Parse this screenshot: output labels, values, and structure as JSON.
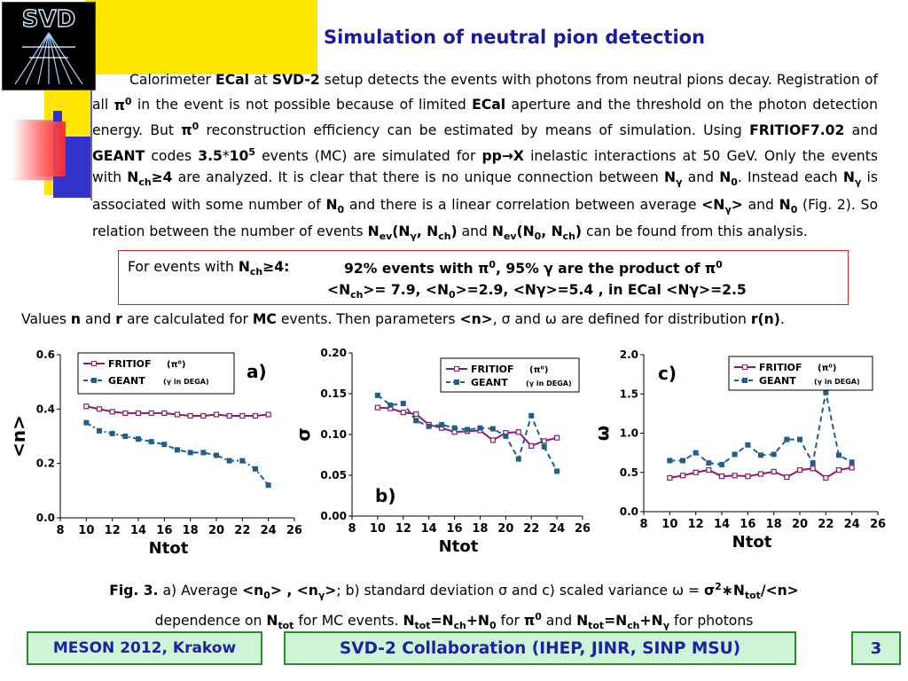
{
  "header": {
    "logo_text": "SVD",
    "title": "Simulation of neutral pion detection"
  },
  "paragraph_html": "Calorimeter <b>ECal</b> at <b>SVD-2</b> setup detects the events with photons from neutral pions decay. Registration of all <b>π<sup>0</sup></b> in the event is not possible because of limited <b>ECal</b> aperture and the threshold on the photon detection energy. But <b>π<sup>0</sup></b> reconstruction efficiency can be estimated by means of simulation. Using <b>FRITIOF7.02</b> and <b>GEANT</b> codes <b>3.5</b>*<b>10<sup>5</sup></b> events (MC) are simulated for <b>pp→X</b> inelastic interactions at 50 GeV. Only the events with <b>N<sub>ch</sub>≥4</b> are analyzed. It is clear that there is no unique connection between <b>N<sub>γ</sub></b> and <b>N<sub>0</sub></b>. Instead each <b>N<sub>γ</sub></b> is associated with some number of <b>N<sub>0</sub></b> and there is a linear correlation between average <b>&lt;N<sub>γ</sub>&gt;</b> and <b>N<sub>0</sub></b> (Fig. 2). So relation between the number of events <b>N<sub>ev</sub>(N<sub>γ</sub>, N<sub>ch</sub>)</b> and <b>N<sub>ev</sub>(N<sub>0</sub>, N<sub>ch</sub>)</b> can be found from this analysis.",
  "summary": {
    "line1_html": "For events with <b>N<sub>ch</sub>≥4:</b>",
    "line2_html": "92% events with π<sup>0</sup>, 95% γ are the product of π<sup>0</sup>",
    "line3_html": "&lt;N<sub>ch</sub>&gt;= 7.9, &lt;N<sub>0</sub>&gt;=2.9, &lt;Nγ&gt;=5.4 , in ECal &lt;Nγ&gt;=2.5"
  },
  "values_line_html": "Values <b>n</b> and <b>r</b> are calculated for <b>MC</b> events. Then parameters <b>&lt;n&gt;</b>, σ and ω are defined for distribution <b>r(n)</b>.",
  "caption_html": "<b>Fig. 3.</b> a) Average <b>&lt;n<sub>0</sub>&gt; , &lt;n<sub>γ</sub>&gt;</b>; b) standard deviation σ and c) scaled variance ω = <b>σ<sup>2</sup>∗N<sub>tot</sub>/&lt;n&gt;</b><br>dependence on <b>N<sub>tot</sub></b> for MC events. <b>N<sub>tot</sub>=N<sub>ch</sub>+N<sub>0</sub></b> for <b>π<sup>0</sup></b> and <b>N<sub>tot</sub>=N<sub>ch</sub>+N<sub>γ</sub></b> for photons",
  "footer": {
    "conference": "MESON 2012, Krakow",
    "collaboration": "SVD-2 Collaboration (IHEP, JINR, SINP MSU)",
    "page": "3"
  },
  "colors": {
    "title": "#1a1a9e",
    "fritiof": "#8b1a6b",
    "geant": "#1f5f8b",
    "footer_bg": "#ccf5d6",
    "footer_border": "#2a8c2a"
  },
  "chart_data": [
    {
      "type": "line",
      "panel_label": "a)",
      "ylabel": "<n>",
      "xlabel": "Ntot",
      "xlim": [
        8,
        26
      ],
      "ylim": [
        0.0,
        0.6
      ],
      "xticks": [
        "8",
        "10",
        "12",
        "14",
        "16",
        "18",
        "20",
        "22",
        "24",
        "26"
      ],
      "yticks": [
        "0.0",
        "0.2",
        "0.4",
        "0.6"
      ],
      "series": [
        {
          "name": "FRITIOF",
          "annotation": "(π⁰)",
          "style": "solid",
          "x": [
            10,
            11,
            12,
            13,
            14,
            15,
            16,
            17,
            18,
            19,
            20,
            21,
            22,
            23,
            24
          ],
          "values": [
            0.41,
            0.4,
            0.39,
            0.385,
            0.385,
            0.385,
            0.385,
            0.38,
            0.375,
            0.375,
            0.38,
            0.375,
            0.375,
            0.375,
            0.38
          ]
        },
        {
          "name": "GEANT",
          "annotation": "(γ in DEGA)",
          "style": "dashdot",
          "x": [
            10,
            11,
            12,
            13,
            14,
            15,
            16,
            17,
            18,
            19,
            20,
            21,
            22,
            23,
            24
          ],
          "values": [
            0.35,
            0.32,
            0.31,
            0.3,
            0.29,
            0.28,
            0.27,
            0.25,
            0.24,
            0.24,
            0.23,
            0.21,
            0.21,
            0.18,
            0.12
          ]
        }
      ]
    },
    {
      "type": "line",
      "panel_label": "b)",
      "ylabel": "σ",
      "xlabel": "Ntot",
      "xlim": [
        8,
        26
      ],
      "ylim": [
        0.0,
        0.2
      ],
      "xticks": [
        "8",
        "10",
        "12",
        "14",
        "16",
        "18",
        "20",
        "22",
        "24",
        "26"
      ],
      "yticks": [
        "0.00",
        "0.05",
        "0.10",
        "0.15",
        "0.20"
      ],
      "series": [
        {
          "name": "FRITIOF",
          "annotation": "(π⁰)",
          "style": "solid",
          "x": [
            10,
            11,
            12,
            13,
            14,
            15,
            16,
            17,
            18,
            19,
            20,
            21,
            22,
            23,
            24
          ],
          "values": [
            0.133,
            0.132,
            0.127,
            0.125,
            0.112,
            0.108,
            0.103,
            0.104,
            0.105,
            0.093,
            0.102,
            0.103,
            0.086,
            0.092,
            0.096
          ]
        },
        {
          "name": "GEANT",
          "annotation": "(γ in DEGA)",
          "style": "dashed",
          "x": [
            10,
            11,
            12,
            13,
            14,
            15,
            16,
            17,
            18,
            19,
            20,
            21,
            22,
            23,
            24
          ],
          "values": [
            0.148,
            0.136,
            0.138,
            0.117,
            0.11,
            0.112,
            0.108,
            0.106,
            0.108,
            0.107,
            0.098,
            0.07,
            0.123,
            0.085,
            0.055
          ]
        }
      ]
    },
    {
      "type": "line",
      "panel_label": "c)",
      "ylabel": "ω",
      "xlabel": "Ntot",
      "xlim": [
        8,
        26
      ],
      "ylim": [
        0.0,
        2.0
      ],
      "xticks": [
        "8",
        "10",
        "12",
        "14",
        "16",
        "18",
        "20",
        "22",
        "24",
        "26"
      ],
      "yticks": [
        "0.0",
        "0.5",
        "1.0",
        "1.5",
        "2.0"
      ],
      "series": [
        {
          "name": "FRITIOF",
          "annotation": "(π⁰)",
          "style": "solid",
          "x": [
            10,
            11,
            12,
            13,
            14,
            15,
            16,
            17,
            18,
            19,
            20,
            21,
            22,
            23,
            24
          ],
          "values": [
            0.43,
            0.46,
            0.5,
            0.53,
            0.45,
            0.46,
            0.45,
            0.48,
            0.51,
            0.44,
            0.53,
            0.55,
            0.43,
            0.53,
            0.56
          ]
        },
        {
          "name": "GEANT",
          "annotation": "(γ in DEGA)",
          "style": "dashed",
          "x": [
            10,
            11,
            12,
            13,
            14,
            15,
            16,
            17,
            18,
            19,
            20,
            21,
            22,
            23,
            24
          ],
          "values": [
            0.65,
            0.65,
            0.75,
            0.62,
            0.6,
            0.73,
            0.85,
            0.72,
            0.73,
            0.92,
            0.92,
            0.62,
            1.52,
            0.72,
            0.63
          ]
        }
      ]
    }
  ]
}
